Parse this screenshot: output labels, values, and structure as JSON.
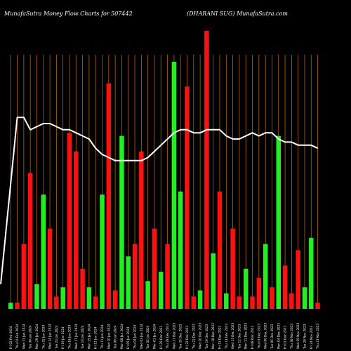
{
  "header": {
    "left": "MunafaSutra  Money Flow  Charts for 507442",
    "right": "(DHARANI SUG) MunafaSutra.com"
  },
  "chart_data": {
    "type": "bar",
    "ylim": [
      0,
      100
    ],
    "grid": "vertical",
    "colors": {
      "up": "#22ee22",
      "down": "#ff1111",
      "grid": "#b8650a",
      "line": "#ffffff"
    },
    "categories": [
      "Fri 02 Feb 2024",
      "Thu 01 Feb 2024",
      "Wed 31 Jan 2024",
      "Tue 30 Jan 2024",
      "Mon 29 Jan 2024",
      "Thu 25 Jan 2024",
      "Wed 24 Jan 2024",
      "Tue 23 Jan 2024",
      "Fri 19 Jan 2024",
      "Thu 18 Jan 2024",
      "Wed 17 Jan 2024",
      "Tue 16 Jan 2024",
      "Mon 15 Jan 2024",
      "Fri 12 Jan 2024",
      "Thu 11 Jan 2024",
      "Wed 10 Jan 2024",
      "Tue 09 Jan 2024",
      "Mon 08 Jan 2024",
      "Fri 05 Jan 2024",
      "Thu 04 Jan 2024",
      "Wed 03 Jan 2024",
      "Tue 02 Jan 2024",
      "Mon 01 Jan 2024",
      "Fri 29 Dec 2023",
      "Thu 28 Dec 2023",
      "Wed 27 Dec 2023",
      "Tue 26 Dec 2023",
      "Fri 22 Dec 2023",
      "Thu 21 Dec 2023",
      "Wed 20 Dec 2023",
      "Tue 19 Dec 2023",
      "Mon 18 Dec 2023",
      "Fri 15 Dec 2023",
      "Thu 14 Dec 2023",
      "Wed 13 Dec 2023",
      "Tue 12 Dec 2023",
      "Mon 11 Dec 2023",
      "Fri 08 Dec 2023",
      "Thu 07 Dec 2023",
      "Wed 06 Dec 2023",
      "Tue 05 Dec 2023",
      "Mon 04 Dec 2023",
      "Fri 01 Dec 2023",
      "Thu 30 Nov 2023",
      "Wed 29 Nov 2023",
      "Tue 28 Nov 2023",
      "Fri 24 Nov 2023",
      "Thu 23 Nov 2023"
    ],
    "values": [
      2,
      2,
      21,
      44,
      8,
      37,
      26,
      4,
      7,
      57,
      51,
      13,
      7,
      4,
      37,
      73,
      6,
      56,
      17,
      21,
      51,
      9,
      26,
      12,
      21,
      80,
      38,
      72,
      4,
      6,
      90,
      18,
      38,
      5,
      26,
      4,
      13,
      4,
      10,
      21,
      7,
      56,
      14,
      5,
      19,
      7,
      23,
      2
    ],
    "up": [
      true,
      false,
      false,
      false,
      true,
      true,
      false,
      false,
      true,
      false,
      false,
      false,
      true,
      false,
      true,
      false,
      false,
      true,
      true,
      false,
      false,
      true,
      false,
      true,
      false,
      true,
      true,
      false,
      false,
      true,
      false,
      true,
      false,
      true,
      false,
      false,
      true,
      false,
      false,
      true,
      false,
      true,
      false,
      false,
      false,
      true,
      true,
      false
    ],
    "line": [
      8,
      62,
      62,
      58,
      59,
      60,
      60,
      59,
      58,
      58,
      57,
      56,
      55,
      52,
      50,
      49,
      48,
      48,
      48,
      48,
      48,
      49,
      51,
      53,
      55,
      57,
      58,
      58,
      57,
      57,
      58,
      58,
      58,
      56,
      55,
      55,
      56,
      57,
      56,
      57,
      57,
      55,
      54,
      54,
      53,
      53,
      53,
      52
    ]
  }
}
